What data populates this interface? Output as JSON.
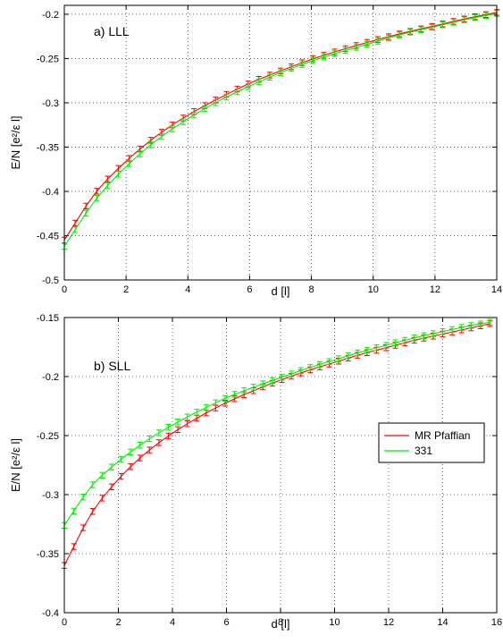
{
  "chart_data": [
    {
      "type": "line",
      "title": "a) LLL",
      "xlabel": "d [l]",
      "ylabel": "E/N [e²/ε l]",
      "xlim": [
        0,
        14
      ],
      "ylim": [
        -0.5,
        -0.19
      ],
      "xticks": [
        "0",
        "2",
        "4",
        "6",
        "8",
        "10",
        "12",
        "14"
      ],
      "yticks": [
        "-0.5",
        "-0.45",
        "-0.4",
        "-0.35",
        "-0.3",
        "-0.25",
        "-0.2"
      ],
      "grid": true,
      "legend": false,
      "series": [
        {
          "color": "#ff0000",
          "error_bars": true,
          "x": [
            0,
            1,
            2,
            3,
            4,
            5,
            6,
            7,
            8,
            9,
            10,
            11,
            12,
            13,
            14
          ],
          "y": [
            -0.455,
            -0.402,
            -0.366,
            -0.337,
            -0.314,
            -0.295,
            -0.278,
            -0.264,
            -0.251,
            -0.24,
            -0.23,
            -0.221,
            -0.213,
            -0.205,
            -0.198
          ]
        },
        {
          "color": "#00ee00",
          "error_bars": true,
          "x": [
            0,
            1,
            2,
            3,
            4,
            5,
            6,
            7,
            8,
            9,
            10,
            11,
            12,
            13,
            14
          ],
          "y": [
            -0.462,
            -0.41,
            -0.372,
            -0.342,
            -0.318,
            -0.298,
            -0.281,
            -0.266,
            -0.253,
            -0.242,
            -0.232,
            -0.222,
            -0.214,
            -0.206,
            -0.199
          ]
        }
      ]
    },
    {
      "type": "line",
      "title": "b) SLL",
      "xlabel": "d [l]",
      "ylabel": "E/N [e²/ε l]",
      "xlim": [
        0,
        16
      ],
      "ylim": [
        -0.4,
        -0.15
      ],
      "xticks": [
        "0",
        "2",
        "4",
        "6",
        "8",
        "10",
        "12",
        "14",
        "16"
      ],
      "yticks": [
        "-0.4",
        "-0.35",
        "-0.3",
        "-0.25",
        "-0.2",
        "-0.15"
      ],
      "grid": true,
      "legend": "right",
      "series": [
        {
          "name": "MR Pfaffian",
          "color": "#ff0000",
          "error_bars": true,
          "x": [
            0,
            1,
            2,
            3,
            4,
            5,
            6,
            7,
            8,
            9,
            10,
            11,
            12,
            13,
            14,
            15,
            16
          ],
          "y": [
            -0.36,
            -0.316,
            -0.287,
            -0.265,
            -0.248,
            -0.234,
            -0.222,
            -0.212,
            -0.203,
            -0.195,
            -0.188,
            -0.181,
            -0.175,
            -0.169,
            -0.164,
            -0.159,
            -0.154
          ]
        },
        {
          "name": "331",
          "color": "#00ee00",
          "error_bars": true,
          "x": [
            0,
            1,
            2,
            3,
            4,
            5,
            6,
            7,
            8,
            9,
            10,
            11,
            12,
            13,
            14,
            15,
            16
          ],
          "y": [
            -0.326,
            -0.293,
            -0.272,
            -0.255,
            -0.241,
            -0.229,
            -0.218,
            -0.209,
            -0.201,
            -0.193,
            -0.186,
            -0.179,
            -0.173,
            -0.167,
            -0.162,
            -0.157,
            -0.153
          ]
        }
      ]
    }
  ]
}
